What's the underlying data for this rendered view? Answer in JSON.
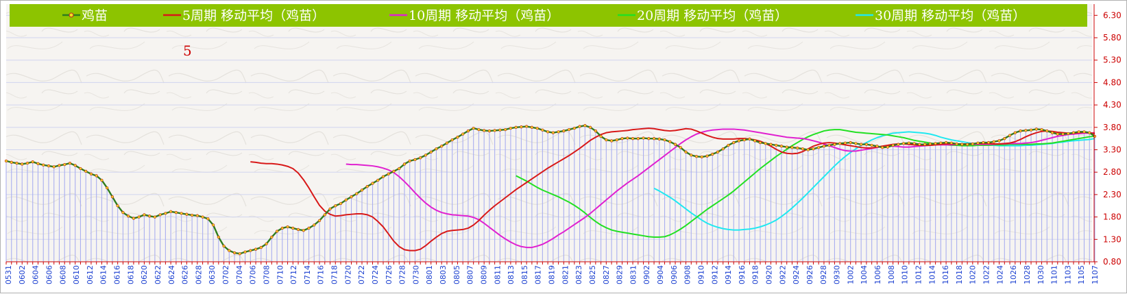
{
  "chart_data": {
    "type": "line",
    "title": "",
    "xlabel": "",
    "ylabel": "",
    "ylim": [
      0.8,
      6.55
    ],
    "yticks": [
      "0.80",
      "1.30",
      "1.80",
      "2.30",
      "2.80",
      "3.30",
      "3.80",
      "4.30",
      "4.80",
      "5.30",
      "5.80",
      "6.30"
    ],
    "xtick_labels": [
      "0531",
      "0602",
      "0604",
      "0606",
      "0608",
      "0610",
      "0612",
      "0614",
      "0616",
      "0618",
      "0620",
      "0622",
      "0624",
      "0626",
      "0628",
      "0630",
      "0702",
      "0704",
      "0706",
      "0708",
      "0710",
      "0712",
      "0714",
      "0716",
      "0718",
      "0720",
      "0722",
      "0724",
      "0726",
      "0728",
      "0730",
      "0801",
      "0803",
      "0805",
      "0807",
      "0809",
      "0811",
      "0813",
      "0815",
      "0817",
      "0819",
      "0821",
      "0823",
      "0825",
      "0827",
      "0829",
      "0831",
      "0902",
      "0904",
      "0906",
      "0908",
      "0910",
      "0912",
      "0914",
      "0916",
      "0918",
      "0920",
      "0922",
      "0924",
      "0926",
      "0928",
      "0930",
      "1002",
      "1004",
      "1006",
      "1008",
      "1010",
      "1012",
      "1014",
      "1016",
      "1018",
      "1020",
      "1022",
      "1024",
      "1026",
      "1028",
      "1030",
      "1101",
      "1103",
      "1105",
      "1107"
    ],
    "annotation": "5",
    "legend_position": "top",
    "series": [
      {
        "name": "鸡苗",
        "color": "#2e7d1e",
        "values": [
          3.05,
          3.02,
          3.0,
          2.98,
          3.0,
          3.03,
          2.99,
          2.96,
          2.94,
          2.92,
          2.95,
          2.97,
          3.0,
          2.95,
          2.88,
          2.82,
          2.76,
          2.72,
          2.62,
          2.45,
          2.25,
          2.05,
          1.9,
          1.82,
          1.77,
          1.8,
          1.85,
          1.82,
          1.8,
          1.85,
          1.88,
          1.92,
          1.9,
          1.88,
          1.86,
          1.84,
          1.83,
          1.8,
          1.76,
          1.62,
          1.35,
          1.15,
          1.05,
          1.0,
          0.98,
          1.02,
          1.05,
          1.08,
          1.12,
          1.2,
          1.35,
          1.48,
          1.55,
          1.58,
          1.55,
          1.52,
          1.5,
          1.55,
          1.62,
          1.72,
          1.85,
          1.98,
          2.05,
          2.1,
          2.18,
          2.25,
          2.32,
          2.4,
          2.48,
          2.55,
          2.62,
          2.7,
          2.76,
          2.82,
          2.88,
          2.98,
          3.05,
          3.08,
          3.12,
          3.18,
          3.25,
          3.32,
          3.38,
          3.45,
          3.52,
          3.58,
          3.65,
          3.72,
          3.78,
          3.75,
          3.73,
          3.72,
          3.73,
          3.74,
          3.75,
          3.78,
          3.8,
          3.81,
          3.82,
          3.8,
          3.78,
          3.74,
          3.7,
          3.68,
          3.7,
          3.72,
          3.75,
          3.78,
          3.82,
          3.84,
          3.8,
          3.72,
          3.6,
          3.52,
          3.5,
          3.52,
          3.55,
          3.56,
          3.55,
          3.55,
          3.56,
          3.55,
          3.55,
          3.54,
          3.52,
          3.48,
          3.42,
          3.35,
          3.25,
          3.18,
          3.15,
          3.14,
          3.16,
          3.2,
          3.25,
          3.32,
          3.4,
          3.46,
          3.5,
          3.52,
          3.54,
          3.5,
          3.46,
          3.44,
          3.42,
          3.4,
          3.38,
          3.36,
          3.35,
          3.34,
          3.32,
          3.3,
          3.32,
          3.35,
          3.38,
          3.4,
          3.42,
          3.44,
          3.45,
          3.46,
          3.44,
          3.42,
          3.42,
          3.4,
          3.38,
          3.35,
          3.36,
          3.4,
          3.42,
          3.44,
          3.45,
          3.44,
          3.42,
          3.42,
          3.43,
          3.44,
          3.45,
          3.46,
          3.45,
          3.43,
          3.42,
          3.42,
          3.43,
          3.45,
          3.46,
          3.46,
          3.48,
          3.5,
          3.55,
          3.62,
          3.68,
          3.72,
          3.73,
          3.74,
          3.76,
          3.75,
          3.72,
          3.68,
          3.65,
          3.65,
          3.66,
          3.68,
          3.7,
          3.7,
          3.68,
          3.6
        ]
      },
      {
        "name": "5周期 移动平均（鸡苗）",
        "color": "#d81818",
        "values": [
          3.03,
          3.02,
          3.0,
          2.99,
          2.99,
          2.98,
          2.96,
          2.93,
          2.88,
          2.78,
          2.63,
          2.45,
          2.25,
          2.06,
          1.93,
          1.86,
          1.82,
          1.83,
          1.85,
          1.86,
          1.87,
          1.87,
          1.85,
          1.8,
          1.7,
          1.58,
          1.42,
          1.26,
          1.14,
          1.07,
          1.05,
          1.05,
          1.08,
          1.16,
          1.26,
          1.35,
          1.43,
          1.48,
          1.5,
          1.51,
          1.52,
          1.55,
          1.62,
          1.72,
          1.84,
          1.95,
          2.05,
          2.14,
          2.23,
          2.32,
          2.41,
          2.49,
          2.57,
          2.65,
          2.73,
          2.81,
          2.89,
          2.96,
          3.03,
          3.1,
          3.17,
          3.25,
          3.33,
          3.42,
          3.51,
          3.58,
          3.64,
          3.68,
          3.7,
          3.71,
          3.72,
          3.73,
          3.75,
          3.76,
          3.77,
          3.78,
          3.77,
          3.75,
          3.73,
          3.72,
          3.73,
          3.75,
          3.77,
          3.76,
          3.72,
          3.67,
          3.62,
          3.58,
          3.55,
          3.54,
          3.54,
          3.54,
          3.55,
          3.55,
          3.54,
          3.52,
          3.49,
          3.44,
          3.38,
          3.31,
          3.25,
          3.22,
          3.21,
          3.22,
          3.26,
          3.32,
          3.38,
          3.42,
          3.45,
          3.46,
          3.45,
          3.43,
          3.41,
          3.39,
          3.37,
          3.35,
          3.34,
          3.34,
          3.36,
          3.38,
          3.4,
          3.42,
          3.43,
          3.43,
          3.42,
          3.41,
          3.4,
          3.4,
          3.4,
          3.41,
          3.42,
          3.43,
          3.43,
          3.43,
          3.43,
          3.43,
          3.44,
          3.44,
          3.44,
          3.44,
          3.43,
          3.43,
          3.44,
          3.45,
          3.48,
          3.53,
          3.59,
          3.64,
          3.68,
          3.71,
          3.72,
          3.71,
          3.69,
          3.68,
          3.67,
          3.67,
          3.68,
          3.69,
          3.68,
          3.66
        ]
      },
      {
        "name": "10周期 移动平均（鸡苗）",
        "color": "#e020d0",
        "values": [
          2.98,
          2.97,
          2.97,
          2.96,
          2.95,
          2.94,
          2.92,
          2.89,
          2.85,
          2.79,
          2.7,
          2.59,
          2.47,
          2.34,
          2.22,
          2.11,
          2.02,
          1.95,
          1.9,
          1.87,
          1.85,
          1.84,
          1.83,
          1.82,
          1.79,
          1.74,
          1.66,
          1.57,
          1.48,
          1.39,
          1.31,
          1.24,
          1.18,
          1.14,
          1.12,
          1.12,
          1.15,
          1.19,
          1.25,
          1.32,
          1.4,
          1.47,
          1.55,
          1.63,
          1.71,
          1.79,
          1.88,
          1.98,
          2.08,
          2.18,
          2.28,
          2.38,
          2.47,
          2.56,
          2.64,
          2.72,
          2.81,
          2.9,
          2.99,
          3.08,
          3.17,
          3.26,
          3.35,
          3.44,
          3.52,
          3.59,
          3.65,
          3.69,
          3.72,
          3.74,
          3.75,
          3.76,
          3.76,
          3.76,
          3.75,
          3.74,
          3.72,
          3.7,
          3.68,
          3.66,
          3.64,
          3.62,
          3.6,
          3.58,
          3.57,
          3.56,
          3.55,
          3.53,
          3.5,
          3.47,
          3.43,
          3.39,
          3.35,
          3.31,
          3.28,
          3.27,
          3.27,
          3.29,
          3.31,
          3.33,
          3.35,
          3.37,
          3.38,
          3.38,
          3.37,
          3.36,
          3.36,
          3.37,
          3.38,
          3.39,
          3.4,
          3.41,
          3.41,
          3.41,
          3.41,
          3.42,
          3.42,
          3.42,
          3.42,
          3.42,
          3.42,
          3.42,
          3.42,
          3.43,
          3.43,
          3.44,
          3.44,
          3.44,
          3.45,
          3.46,
          3.48,
          3.51,
          3.54,
          3.57,
          3.6,
          3.62,
          3.64,
          3.65,
          3.66,
          3.67,
          3.67,
          3.68
        ]
      },
      {
        "name": "20周期 移动平均（鸡苗）",
        "color": "#22e022",
        "values": [
          2.72,
          2.66,
          2.6,
          2.53,
          2.46,
          2.4,
          2.35,
          2.3,
          2.25,
          2.19,
          2.13,
          2.06,
          1.98,
          1.89,
          1.79,
          1.7,
          1.62,
          1.56,
          1.51,
          1.48,
          1.46,
          1.44,
          1.42,
          1.4,
          1.38,
          1.36,
          1.35,
          1.35,
          1.36,
          1.4,
          1.46,
          1.53,
          1.61,
          1.7,
          1.79,
          1.88,
          1.97,
          2.05,
          2.13,
          2.21,
          2.29,
          2.38,
          2.48,
          2.58,
          2.68,
          2.78,
          2.88,
          2.97,
          3.06,
          3.15,
          3.23,
          3.31,
          3.39,
          3.46,
          3.53,
          3.59,
          3.64,
          3.68,
          3.72,
          3.74,
          3.75,
          3.75,
          3.73,
          3.71,
          3.69,
          3.68,
          3.67,
          3.66,
          3.65,
          3.64,
          3.63,
          3.61,
          3.59,
          3.57,
          3.54,
          3.51,
          3.49,
          3.47,
          3.45,
          3.43,
          3.42,
          3.41,
          3.4,
          3.4,
          3.39,
          3.39,
          3.39,
          3.4,
          3.4,
          3.4,
          3.41,
          3.41,
          3.41,
          3.42,
          3.42,
          3.42,
          3.42,
          3.42,
          3.43,
          3.43,
          3.44,
          3.45,
          3.47,
          3.49,
          3.51,
          3.53,
          3.55,
          3.57,
          3.59,
          3.6
        ]
      },
      {
        "name": "30周期 移动平均（鸡苗）",
        "color": "#20e8f0",
        "values": [
          2.44,
          2.38,
          2.31,
          2.24,
          2.16,
          2.07,
          1.98,
          1.89,
          1.81,
          1.73,
          1.66,
          1.61,
          1.57,
          1.54,
          1.52,
          1.51,
          1.51,
          1.52,
          1.53,
          1.55,
          1.58,
          1.62,
          1.67,
          1.73,
          1.81,
          1.9,
          2.0,
          2.11,
          2.22,
          2.34,
          2.46,
          2.58,
          2.7,
          2.82,
          2.94,
          3.05,
          3.15,
          3.24,
          3.32,
          3.4,
          3.46,
          3.52,
          3.57,
          3.61,
          3.64,
          3.67,
          3.68,
          3.69,
          3.7,
          3.69,
          3.68,
          3.67,
          3.65,
          3.62,
          3.58,
          3.55,
          3.52,
          3.5,
          3.48,
          3.46,
          3.44,
          3.42,
          3.41,
          3.4,
          3.4,
          3.39,
          3.39,
          3.39,
          3.39,
          3.39,
          3.4,
          3.4,
          3.41,
          3.42,
          3.43,
          3.44,
          3.46,
          3.47,
          3.49,
          3.5,
          3.51,
          3.52,
          3.53,
          3.55
        ]
      }
    ]
  }
}
